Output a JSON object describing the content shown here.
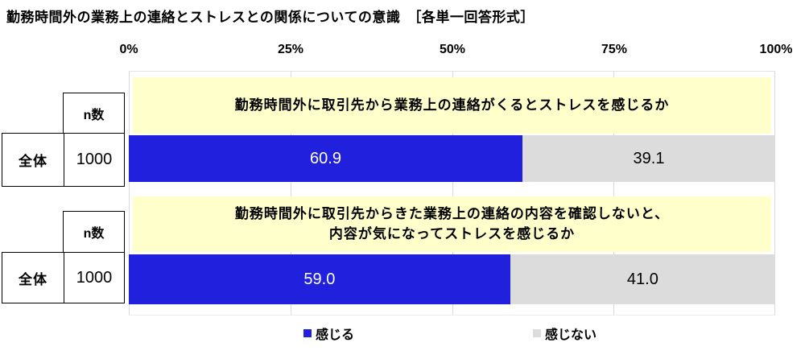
{
  "title": "勤務時間外の業務上の連絡とストレスとの関係についての意識　［各単一回答形式］",
  "axis": {
    "ticks": [
      "0%",
      "25%",
      "50%",
      "75%",
      "100%"
    ]
  },
  "side_table": {
    "n_header": "n数",
    "row_label": "全体",
    "n_value": "1000"
  },
  "rows": [
    {
      "question_line1": "勤務時間外に取引先から業務上の連絡がくるとストレスを感じるか",
      "question_line2": "",
      "n": "1000",
      "values": [
        "60.9",
        "39.1"
      ]
    },
    {
      "question_line1": "勤務時間外に取引先からきた業務上の連絡の内容を確認しないと、",
      "question_line2": "内容が気になってストレスを感じるか",
      "n": "1000",
      "values": [
        "59.0",
        "41.0"
      ]
    }
  ],
  "legend": [
    {
      "label": "感じる",
      "color": "#2121dd"
    },
    {
      "label": "感じない",
      "color": "#dcdcdc"
    }
  ],
  "colors": {
    "bar_yes": "#2121dd",
    "bar_no": "#dcdcdc",
    "question_bg": "#ffffcc",
    "gridline": "#d9d9d9"
  },
  "chart_data": {
    "type": "bar",
    "orientation": "horizontal-stacked",
    "title": "勤務時間外の業務上の連絡とストレスとの関係についての意識　［各単一回答形式］",
    "categories": [
      "勤務時間外に取引先から業務上の連絡がくるとストレスを感じるか",
      "勤務時間外に取引先からきた業務上の連絡の内容を確認しないと、内容が気になってストレスを感じるか"
    ],
    "series": [
      {
        "name": "感じる",
        "color": "#2121dd",
        "values": [
          60.9,
          59.0
        ]
      },
      {
        "name": "感じない",
        "color": "#dcdcdc",
        "values": [
          39.1,
          41.0
        ]
      }
    ],
    "n_values": [
      1000,
      1000
    ],
    "xlabel": "",
    "ylabel": "",
    "xlim": [
      0,
      100
    ],
    "x_tick_labels": [
      "0%",
      "25%",
      "50%",
      "75%",
      "100%"
    ],
    "grid": true,
    "legend_position": "bottom",
    "value_labels_shown": true
  }
}
